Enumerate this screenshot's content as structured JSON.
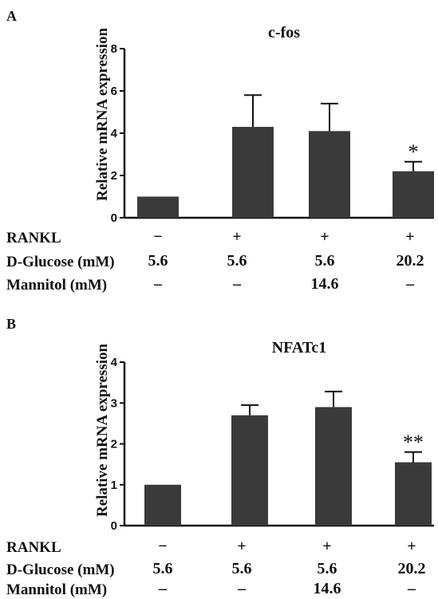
{
  "panels": [
    {
      "letter": "A",
      "conditions": {
        "labels": [
          "RANKL",
          "D-Glucose (mM)",
          "Mannitol (mM)"
        ],
        "values": [
          [
            "−",
            "+",
            "+",
            "+"
          ],
          [
            "5.6",
            "5.6",
            "5.6",
            "20.2"
          ],
          [
            "–",
            "–",
            "14.6",
            "–"
          ]
        ]
      }
    },
    {
      "letter": "B",
      "conditions": {
        "labels": [
          "RANKL",
          "D-Glucose (mM)",
          "Mannitol (mM)"
        ],
        "values": [
          [
            "−",
            "+",
            "+",
            "+"
          ],
          [
            "5.6",
            "5.6",
            "5.6",
            "20.2"
          ],
          [
            "–",
            "–",
            "14.6",
            "–"
          ]
        ]
      }
    }
  ],
  "chart_data": [
    {
      "type": "bar",
      "title": "c-fos",
      "ylabel": "Relative mRNA expression",
      "xlabel": "",
      "ylim": [
        0,
        8
      ],
      "yticks": [
        0,
        2,
        4,
        6,
        8
      ],
      "values": [
        1.0,
        4.3,
        4.1,
        2.2
      ],
      "errors": [
        0,
        1.5,
        1.3,
        0.45
      ],
      "significance": [
        "",
        "",
        "",
        "*"
      ],
      "bar_color": "#3a3a3a",
      "grid": false
    },
    {
      "type": "bar",
      "title": "NFATc1",
      "ylabel": "Relative mRNA expression",
      "xlabel": "",
      "ylim": [
        0,
        4
      ],
      "yticks": [
        0,
        1,
        2,
        3,
        4
      ],
      "values": [
        1.0,
        2.7,
        2.9,
        1.55
      ],
      "errors": [
        0,
        0.25,
        0.38,
        0.25
      ],
      "significance": [
        "",
        "",
        "",
        "**"
      ],
      "bar_color": "#3a3a3a",
      "grid": false
    }
  ]
}
